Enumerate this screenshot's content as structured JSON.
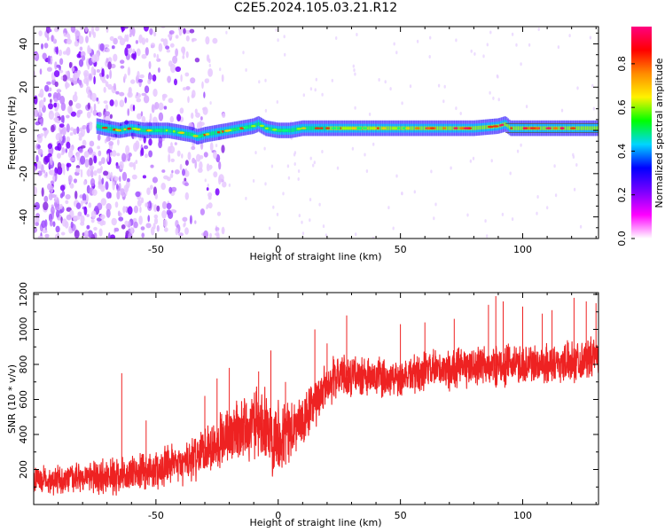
{
  "title": "C2E5.2024.105.03.21.R12",
  "colors": {
    "snr_line": "#ee2222",
    "colormap": [
      "#ffffff",
      "#ff00ff",
      "#7a00ff",
      "#0000ff",
      "#00d5ff",
      "#00ff00",
      "#fff200",
      "#ff8c00",
      "#ff0000",
      "#ff0080"
    ]
  },
  "chart_data": [
    {
      "type": "heatmap",
      "xlabel": "Height of straight line (km)",
      "ylabel": "Frequency (Hz)",
      "xlim": [
        -100,
        131
      ],
      "ylim": [
        -50,
        48
      ],
      "xticks": [
        -50,
        0,
        50,
        100
      ],
      "yticks": [
        -40,
        -20,
        0,
        20,
        40
      ],
      "xtick_labels": [
        "-50",
        "0",
        "50",
        "100"
      ],
      "ytick_labels": [
        "-40",
        "-20",
        "0",
        "20",
        "40"
      ],
      "colorbar": {
        "label": "Normalized spectral amplitude",
        "range": [
          0,
          0.97
        ],
        "ticks": [
          0.0,
          0.2,
          0.4,
          0.6,
          0.8
        ],
        "tick_labels": [
          "0.0",
          "0.2",
          "0.4",
          "0.6",
          "0.8"
        ]
      },
      "ridge": {
        "x": [
          -74,
          -70,
          -65,
          -60,
          -55,
          -50,
          -45,
          -40,
          -35,
          -33,
          -30,
          -25,
          -20,
          -15,
          -10,
          -8,
          -5,
          0,
          5,
          10,
          20,
          30,
          40,
          50,
          60,
          70,
          80,
          90,
          93,
          95,
          100,
          110,
          120,
          131
        ],
        "freq": [
          2,
          1,
          0,
          1,
          0,
          0,
          0,
          -1,
          -2,
          -3,
          -2,
          -1,
          0,
          1,
          2,
          3,
          1,
          0,
          0,
          1,
          1,
          1,
          1,
          1,
          1,
          1,
          1,
          2,
          3,
          1,
          1,
          1,
          1,
          1
        ]
      },
      "noise_region_x": [
        -100,
        -30
      ]
    },
    {
      "type": "line",
      "xlabel": "Height of straight line (km)",
      "ylabel": "SNR (10 * v/v)",
      "xlim": [
        -100,
        131
      ],
      "ylim": [
        0,
        1210
      ],
      "xticks": [
        -50,
        0,
        50,
        100
      ],
      "yticks": [
        200,
        400,
        600,
        800,
        1000,
        1200
      ],
      "xtick_labels": [
        "-50",
        "0",
        "50",
        "100"
      ],
      "ytick_labels": [
        "200",
        "400",
        "600",
        "800",
        "1000",
        "1200"
      ],
      "series": [
        {
          "x": [
            -100,
            -90,
            -80,
            -70,
            -60,
            -50,
            -40,
            -35,
            -30,
            -25,
            -20,
            -15,
            -10,
            -5,
            0,
            5,
            10,
            15,
            20,
            25,
            30,
            40,
            50,
            60,
            70,
            80,
            90,
            100,
            110,
            120,
            131
          ],
          "center": [
            140,
            140,
            150,
            160,
            170,
            200,
            230,
            250,
            320,
            360,
            400,
            430,
            460,
            420,
            400,
            420,
            470,
            580,
            690,
            740,
            730,
            720,
            730,
            760,
            770,
            790,
            790,
            800,
            800,
            820,
            840
          ],
          "spread": [
            65,
            65,
            70,
            80,
            85,
            90,
            95,
            100,
            120,
            130,
            140,
            150,
            160,
            190,
            180,
            150,
            130,
            120,
            110,
            100,
            95,
            95,
            95,
            95,
            95,
            95,
            95,
            95,
            95,
            95,
            95
          ],
          "spikes": [
            [
              -64,
              750
            ],
            [
              -54,
              480
            ],
            [
              -30,
              620
            ],
            [
              -25,
              720
            ],
            [
              -20,
              780
            ],
            [
              -8,
              760
            ],
            [
              -3,
              880
            ],
            [
              3,
              700
            ],
            [
              15,
              1000
            ],
            [
              20,
              920
            ],
            [
              28,
              1080
            ],
            [
              50,
              1030
            ],
            [
              60,
              1040
            ],
            [
              72,
              1060
            ],
            [
              86,
              1140
            ],
            [
              89,
              1190
            ],
            [
              92,
              1160
            ],
            [
              100,
              1130
            ],
            [
              108,
              1090
            ],
            [
              112,
              1110
            ],
            [
              121,
              1180
            ],
            [
              126,
              1160
            ],
            [
              130,
              1150
            ]
          ]
        }
      ]
    }
  ]
}
